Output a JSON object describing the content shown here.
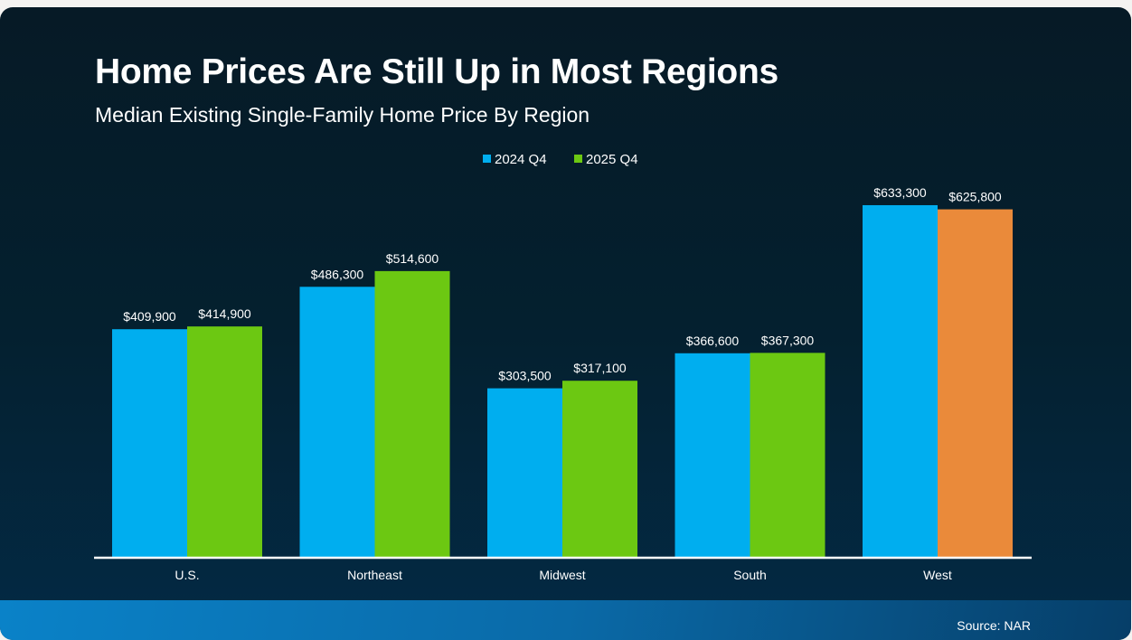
{
  "chart_data": {
    "type": "bar",
    "title": "Home Prices Are Still Up in Most Regions",
    "subtitle": "Median Existing Single-Family Home Price By Region",
    "categories": [
      "U.S.",
      "Northeast",
      "Midwest",
      "South",
      "West"
    ],
    "series": [
      {
        "name": "2024 Q4",
        "values": [
          409900,
          486300,
          303500,
          366600,
          633300
        ],
        "labels": [
          "$409,900",
          "$486,300",
          "$303,500",
          "$366,600",
          "$633,300"
        ],
        "color": "#00aeef"
      },
      {
        "name": "2025 Q4",
        "values": [
          414900,
          514600,
          317100,
          367300,
          625800
        ],
        "labels": [
          "$414,900",
          "$514,600",
          "$317,100",
          "$367,300",
          "$625,800"
        ],
        "color": "#6cc812",
        "highlight_colors": {
          "4": "#ea8a3a"
        }
      }
    ],
    "ylim": [
      0,
      700000
    ],
    "grid": false,
    "legend": "top-center",
    "source": "Source: NAR"
  }
}
